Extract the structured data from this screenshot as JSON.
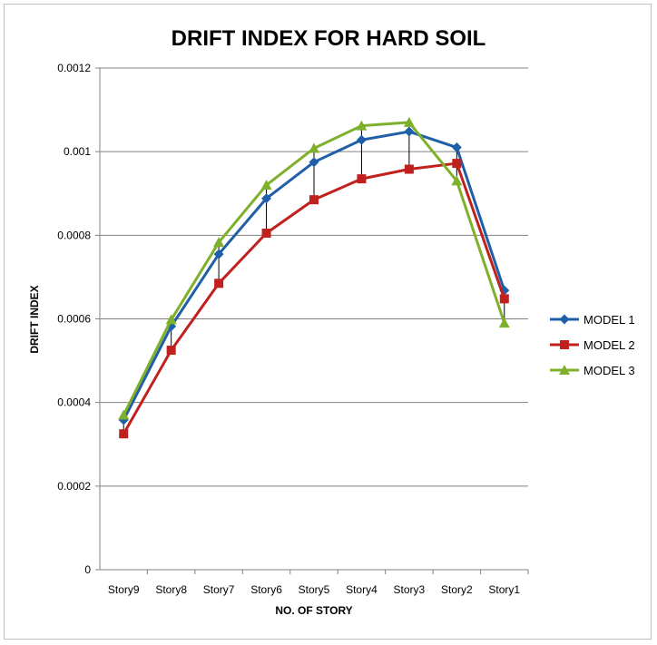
{
  "chart_data": {
    "type": "line",
    "title": "DRIFT INDEX FOR HARD SOIL",
    "xlabel": "NO. OF STORY",
    "ylabel": "DRIFT INDEX",
    "categories": [
      "Story9",
      "Story8",
      "Story7",
      "Story6",
      "Story5",
      "Story4",
      "Story3",
      "Story2",
      "Story1"
    ],
    "ylim": [
      0,
      0.0012
    ],
    "yticks": [
      "0",
      "0.0002",
      "0.0004",
      "0.0006",
      "0.0008",
      "0.001",
      "0.0012"
    ],
    "grid": true,
    "legend_position": "right",
    "drop_lines": true,
    "series": [
      {
        "name": "MODEL 1",
        "color": "#1f5fa8",
        "marker": "diamond",
        "values": [
          0.000358,
          0.000582,
          0.000755,
          0.000888,
          0.000975,
          0.001028,
          0.001048,
          0.00101,
          0.000668
        ]
      },
      {
        "name": "MODEL 2",
        "color": "#c0201e",
        "marker": "square",
        "values": [
          0.000325,
          0.000525,
          0.000685,
          0.000805,
          0.000885,
          0.000935,
          0.000958,
          0.000972,
          0.000648
        ]
      },
      {
        "name": "MODEL 3",
        "color": "#7fb02c",
        "marker": "triangle",
        "values": [
          0.00037,
          0.000598,
          0.000783,
          0.00092,
          0.001008,
          0.001062,
          0.00107,
          0.00093,
          0.00059
        ]
      }
    ]
  }
}
